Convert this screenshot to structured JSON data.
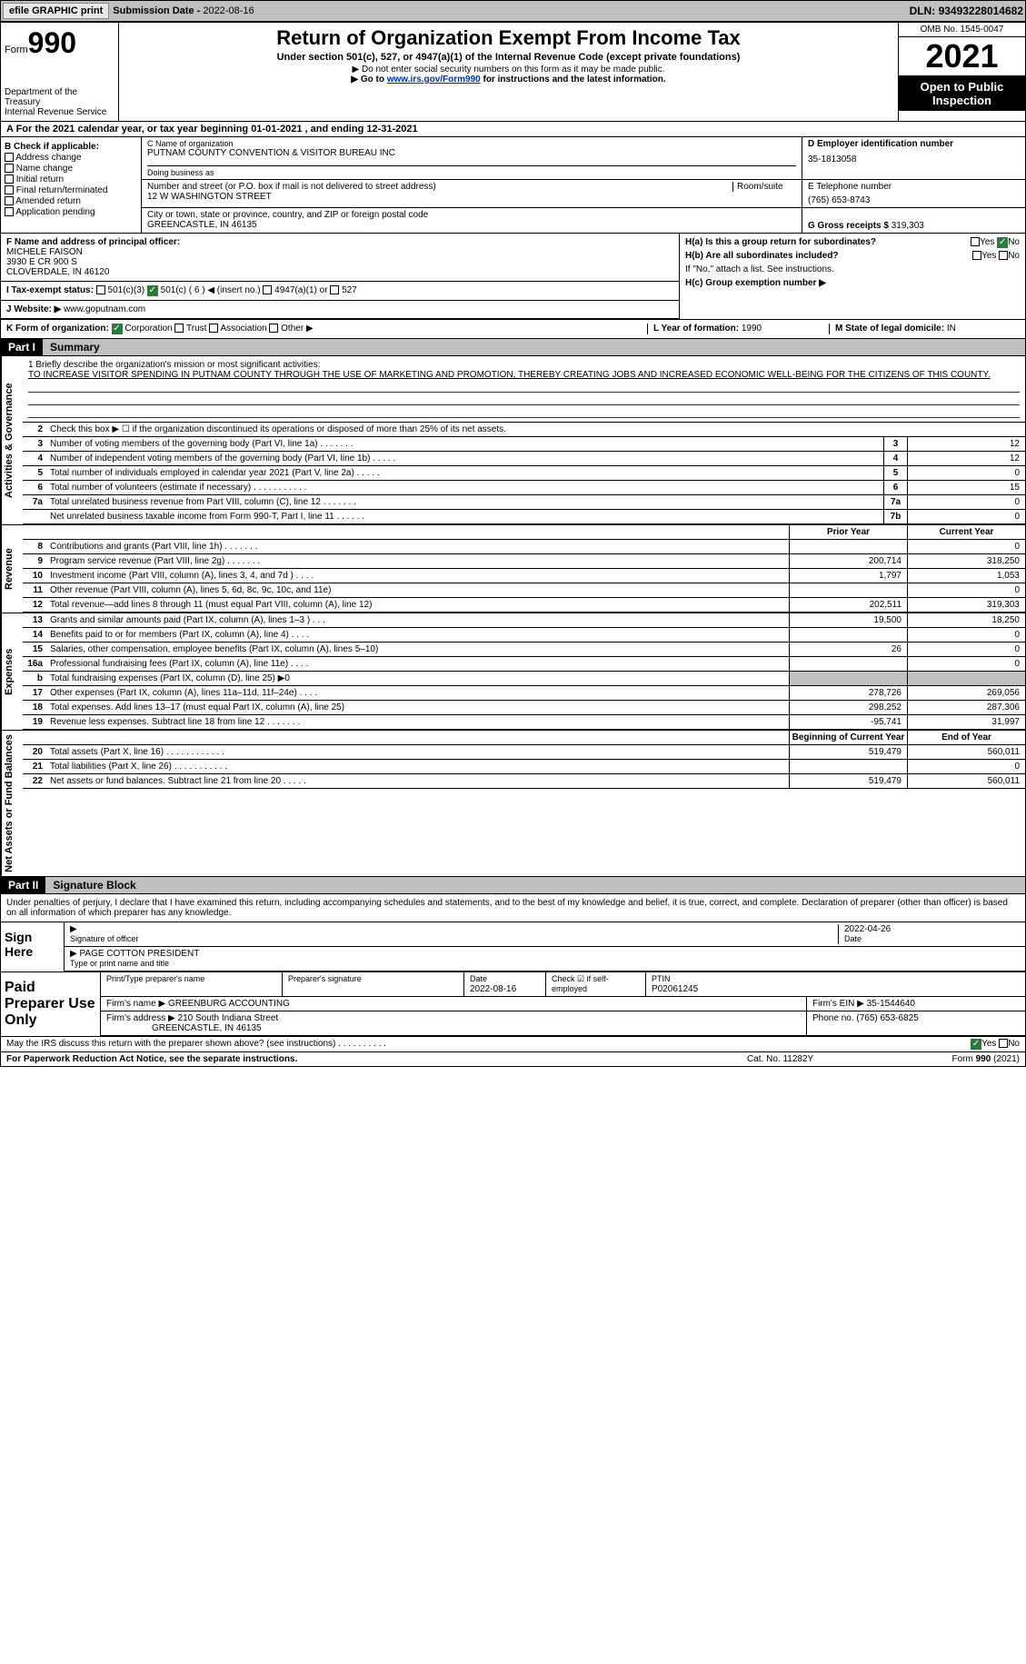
{
  "topbar": {
    "efile_btn": "efile GRAPHIC print",
    "sub_date_label": "Submission Date - ",
    "sub_date": "2022-08-16",
    "dln_label": "DLN: ",
    "dln": "93493228014682"
  },
  "header": {
    "form_label": "Form",
    "form_num": "990",
    "dept": "Department of the Treasury\nInternal Revenue Service",
    "title": "Return of Organization Exempt From Income Tax",
    "sub1": "Under section 501(c), 527, or 4947(a)(1) of the Internal Revenue Code (except private foundations)",
    "note1": "▶ Do not enter social security numbers on this form as it may be made public.",
    "note2_pre": "▶ Go to ",
    "note2_link": "www.irs.gov/Form990",
    "note2_post": " for instructions and the latest information.",
    "omb": "OMB No. 1545-0047",
    "year": "2021",
    "inspect": "Open to Public Inspection"
  },
  "section_a": "A For the 2021 calendar year, or tax year beginning 01-01-2021   , and ending 12-31-2021",
  "col_b": {
    "label": "B Check if applicable:",
    "items": [
      "Address change",
      "Name change",
      "Initial return",
      "Final return/terminated",
      "Amended return",
      "Application pending"
    ]
  },
  "col_c": {
    "name_lbl": "C Name of organization",
    "name": "PUTNAM COUNTY CONVENTION & VISITOR BUREAU INC",
    "dba_lbl": "Doing business as",
    "addr_lbl": "Number and street (or P.O. box if mail is not delivered to street address)",
    "room_lbl": "Room/suite",
    "addr": "12 W WASHINGTON STREET",
    "city_lbl": "City or town, state or province, country, and ZIP or foreign postal code",
    "city": "GREENCASTLE, IN  46135"
  },
  "col_d": {
    "ein_lbl": "D Employer identification number",
    "ein": "35-1813058",
    "phone_lbl": "E Telephone number",
    "phone": "(765) 653-8743",
    "receipts_lbl": "G Gross receipts $ ",
    "receipts": "319,303"
  },
  "f": {
    "lbl": "F Name and address of principal officer:",
    "name": "MICHELE FAISON",
    "addr1": "3930 E CR 900 S",
    "addr2": "CLOVERDALE, IN  46120"
  },
  "h": {
    "ha": "H(a)  Is this a group return for subordinates?",
    "hb": "H(b)  Are all subordinates included?",
    "hc_note": "If \"No,\" attach a list. See instructions.",
    "hc": "H(c)  Group exemption number ▶",
    "yes": "Yes",
    "no": "No"
  },
  "i": {
    "lbl": "I   Tax-exempt status:",
    "opts": [
      "501(c)(3)",
      "501(c) ( 6 ) ◀ (insert no.)",
      "4947(a)(1) or",
      "527"
    ]
  },
  "j": {
    "lbl": "J   Website: ▶  ",
    "val": "www.goputnam.com"
  },
  "k": {
    "lbl": "K Form of organization:",
    "opts": [
      "Corporation",
      "Trust",
      "Association",
      "Other ▶"
    ]
  },
  "l": {
    "lbl": "L Year of formation: ",
    "val": "1990"
  },
  "m": {
    "lbl": "M State of legal domicile: ",
    "val": "IN"
  },
  "part1": {
    "num": "Part I",
    "title": "Summary"
  },
  "mission": {
    "lbl": "1   Briefly describe the organization's mission or most significant activities:",
    "txt": "TO INCREASE VISITOR SPENDING IN PUTNAM COUNTY THROUGH THE USE OF MARKETING AND PROMOTION, THEREBY CREATING JOBS AND INCREASED ECONOMIC WELL-BEING FOR THE CITIZENS OF THIS COUNTY."
  },
  "tabs": {
    "ag": "Activities & Governance",
    "rev": "Revenue",
    "exp": "Expenses",
    "net": "Net Assets or Fund Balances"
  },
  "lines_ag": [
    {
      "n": "2",
      "d": "Check this box ▶ ☐ if the organization discontinued its operations or disposed of more than 25% of its net assets."
    },
    {
      "n": "3",
      "d": "Number of voting members of the governing body (Part VI, line 1a)  .   .   .   .   .   .   .",
      "b": "3",
      "v": "12"
    },
    {
      "n": "4",
      "d": "Number of independent voting members of the governing body (Part VI, line 1b)  .   .   .   .   .",
      "b": "4",
      "v": "12"
    },
    {
      "n": "5",
      "d": "Total number of individuals employed in calendar year 2021 (Part V, line 2a)  .   .   .   .   .",
      "b": "5",
      "v": "0"
    },
    {
      "n": "6",
      "d": "Total number of volunteers (estimate if necessary)   .   .   .   .   .   .   .   .   .   .   .",
      "b": "6",
      "v": "15"
    },
    {
      "n": "7a",
      "d": "Total unrelated business revenue from Part VIII, column (C), line 12  .   .   .   .   .   .   .",
      "b": "7a",
      "v": "0"
    },
    {
      "n": "",
      "d": "Net unrelated business taxable income from Form 990-T, Part I, line 11  .   .   .   .   .   .",
      "b": "7b",
      "v": "0"
    }
  ],
  "two_col_hdr": {
    "c1": "Prior Year",
    "c2": "Current Year"
  },
  "lines_rev": [
    {
      "n": "8",
      "d": "Contributions and grants (Part VIII, line 1h)   .   .   .   .   .   .   .",
      "v1": "",
      "v2": "0"
    },
    {
      "n": "9",
      "d": "Program service revenue (Part VIII, line 2g)   .   .   .   .   .   .   .",
      "v1": "200,714",
      "v2": "318,250"
    },
    {
      "n": "10",
      "d": "Investment income (Part VIII, column (A), lines 3, 4, and 7d )   .   .   .   .",
      "v1": "1,797",
      "v2": "1,053"
    },
    {
      "n": "11",
      "d": "Other revenue (Part VIII, column (A), lines 5, 6d, 8c, 9c, 10c, and 11e)",
      "v1": "",
      "v2": "0"
    },
    {
      "n": "12",
      "d": "Total revenue—add lines 8 through 11 (must equal Part VIII, column (A), line 12)",
      "v1": "202,511",
      "v2": "319,303"
    }
  ],
  "lines_exp": [
    {
      "n": "13",
      "d": "Grants and similar amounts paid (Part IX, column (A), lines 1–3 )   .   .   .",
      "v1": "19,500",
      "v2": "18,250"
    },
    {
      "n": "14",
      "d": "Benefits paid to or for members (Part IX, column (A), line 4)   .   .   .   .",
      "v1": "",
      "v2": "0"
    },
    {
      "n": "15",
      "d": "Salaries, other compensation, employee benefits (Part IX, column (A), lines 5–10)",
      "v1": "26",
      "v2": "0"
    },
    {
      "n": "16a",
      "d": "Professional fundraising fees (Part IX, column (A), line 11e)   .   .   .   .",
      "v1": "",
      "v2": "0"
    },
    {
      "n": "b",
      "d": "Total fundraising expenses (Part IX, column (D), line 25) ▶0",
      "v1": "shade",
      "v2": "shade"
    },
    {
      "n": "17",
      "d": "Other expenses (Part IX, column (A), lines 11a–11d, 11f–24e)   .   .   .   .",
      "v1": "278,726",
      "v2": "269,056"
    },
    {
      "n": "18",
      "d": "Total expenses. Add lines 13–17 (must equal Part IX, column (A), line 25)",
      "v1": "298,252",
      "v2": "287,306"
    },
    {
      "n": "19",
      "d": "Revenue less expenses. Subtract line 18 from line 12 .   .   .   .   .   .   .",
      "v1": "-95,741",
      "v2": "31,997"
    }
  ],
  "two_col_hdr2": {
    "c1": "Beginning of Current Year",
    "c2": "End of Year"
  },
  "lines_net": [
    {
      "n": "20",
      "d": "Total assets (Part X, line 16)  .   .   .   .   .   .   .   .   .   .   .   .",
      "v1": "519,479",
      "v2": "560,011"
    },
    {
      "n": "21",
      "d": "Total liabilities (Part X, line 26)  .   .   .   .   .   .   .   .   .   .   .",
      "v1": "",
      "v2": "0"
    },
    {
      "n": "22",
      "d": "Net assets or fund balances. Subtract line 21 from line 20 .   .   .   .   .",
      "v1": "519,479",
      "v2": "560,011"
    }
  ],
  "part2": {
    "num": "Part II",
    "title": "Signature Block"
  },
  "sig_decl": "Under penalties of perjury, I declare that I have examined this return, including accompanying schedules and statements, and to the best of my knowledge and belief, it is true, correct, and complete. Declaration of preparer (other than officer) is based on all information of which preparer has any knowledge.",
  "sign_here": "Sign Here",
  "sig_officer_lbl": "Signature of officer",
  "sig_date": "2022-04-26",
  "sig_date_lbl": "Date",
  "sig_name": "PAGE COTTON  PRESIDENT",
  "sig_name_lbl": "Type or print name and title",
  "paid_prep": "Paid Preparer Use Only",
  "prep": {
    "name_lbl": "Print/Type preparer's name",
    "sig_lbl": "Preparer's signature",
    "date_lbl": "Date",
    "date": "2022-08-16",
    "check_lbl": "Check ☑ if self-employed",
    "ptin_lbl": "PTIN",
    "ptin": "P02061245",
    "firm_name_lbl": "Firm's name    ▶ ",
    "firm_name": "GREENBURG ACCOUNTING",
    "firm_ein_lbl": "Firm's EIN ▶ ",
    "firm_ein": "35-1544640",
    "firm_addr_lbl": "Firm's address ▶ ",
    "firm_addr": "210 South Indiana Street",
    "firm_city": "GREENCASTLE, IN  46135",
    "phone_lbl": "Phone no. ",
    "phone": "(765) 653-6825"
  },
  "may_irs": "May the IRS discuss this return with the preparer shown above? (see instructions)   .   .   .   .   .   .   .   .   .   .",
  "footer": {
    "pra": "For Paperwork Reduction Act Notice, see the separate instructions.",
    "cat": "Cat. No. 11282Y",
    "form": "Form 990 (2021)"
  }
}
